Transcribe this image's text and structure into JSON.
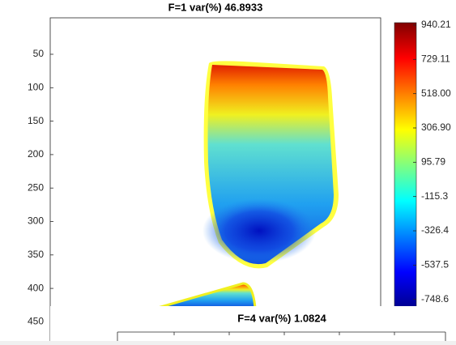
{
  "chart_data": [
    {
      "type": "heatmap",
      "title": "F=1 var(%) 46.8933",
      "ylim": [
        0.5,
        480
      ],
      "yticks": [
        50,
        100,
        150,
        200,
        250,
        300,
        350,
        400,
        450
      ],
      "colorbar": {
        "lim": [
          -800,
          955
        ],
        "ticks": [
          940.21,
          729.11,
          {
            "value": 518,
            "label": "518.00"
          },
          {
            "value": 306.9,
            "label": "306.90"
          },
          95.79,
          -115.3,
          -326.4,
          -537.5,
          -748.6
        ]
      }
    },
    {
      "type": "heatmap",
      "title": "F=4 var(%) 1.0824"
    }
  ]
}
